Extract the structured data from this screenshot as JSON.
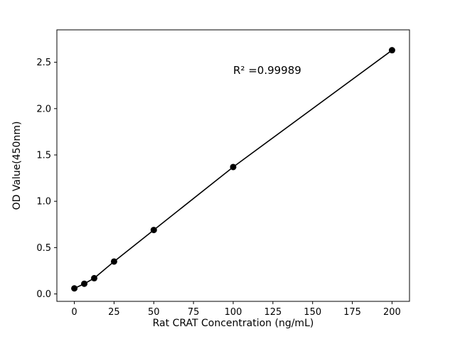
{
  "chart": {
    "annotation": "R² =0.99989",
    "xlabel": "Rat CRAT Concentration (ng/mL)",
    "ylabel": "OD Value(450nm)"
  },
  "chart_data": {
    "type": "scatter",
    "title": "",
    "x": [
      0,
      6.25,
      12.5,
      25,
      50,
      100,
      200
    ],
    "y": [
      0.06,
      0.11,
      0.17,
      0.35,
      0.69,
      1.37,
      2.63
    ],
    "xlabel": "Rat CRAT Concentration (ng/mL)",
    "ylabel": "OD Value(450nm)",
    "annotation": "R² =0.99989",
    "annotation_xy": [
      100,
      2.46
    ],
    "xlim": [
      -11,
      211
    ],
    "ylim": [
      -0.08,
      2.85
    ],
    "xticks": [
      0,
      25,
      50,
      75,
      100,
      125,
      150,
      175,
      200
    ],
    "yticks": [
      0.0,
      0.5,
      1.0,
      1.5,
      2.0,
      2.5
    ],
    "grid": false,
    "fit_line": true,
    "legend": "none",
    "line_color": "#000000",
    "marker_color": "#000000",
    "background": "#ffffff"
  }
}
